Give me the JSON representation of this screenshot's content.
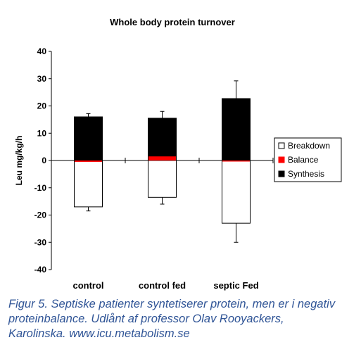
{
  "chart_data": {
    "type": "bar",
    "title": "Whole body protein turnover",
    "ylabel": "Leu mg/kg/h",
    "xlabel": "",
    "ylim": [
      -40,
      40
    ],
    "yticks": [
      40,
      30,
      20,
      10,
      0,
      -10,
      -20,
      -30,
      -40
    ],
    "categories": [
      "control",
      "control fed",
      "septic Fed"
    ],
    "series": [
      {
        "name": "Breakdown",
        "color": "#ffffff",
        "values": [
          -17,
          -13.5,
          -23
        ],
        "error": [
          1.5,
          2.5,
          7
        ]
      },
      {
        "name": "Balance",
        "color": "#ff0000",
        "values": [
          -0.5,
          1.5,
          -0.3
        ],
        "error": [
          0,
          0,
          0
        ]
      },
      {
        "name": "Synthesis",
        "color": "#000000",
        "values": [
          16,
          15.5,
          22.7
        ],
        "error": [
          1.2,
          2.5,
          6.5
        ]
      }
    ],
    "legend_position": "right",
    "grid": false
  },
  "caption": "Figur 5. Septiske patienter syntetiserer protein, men er i negativ proteinbalance. Udlånt af professor Olav Rooyackers, Karolinska. www.icu.metabolism.se"
}
